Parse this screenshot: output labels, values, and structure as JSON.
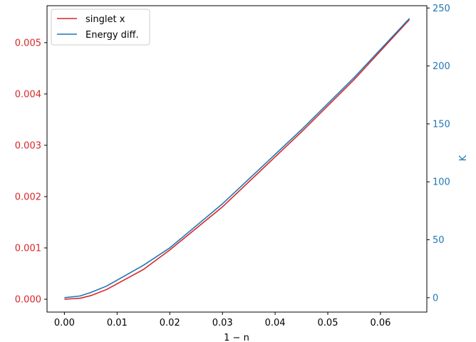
{
  "chart_data": {
    "type": "line",
    "xlabel": "1 − n",
    "ylabel_left": "",
    "ylabel_right": "K",
    "xlim": [
      -0.0033,
      0.0688
    ],
    "ylim_left": [
      -0.00025,
      0.00572
    ],
    "ylim_right": [
      -12.4,
      252
    ],
    "xticks": [
      "0.00",
      "0.01",
      "0.02",
      "0.03",
      "0.04",
      "0.05",
      "0.06"
    ],
    "yticks_left": [
      "0.000",
      "0.001",
      "0.002",
      "0.003",
      "0.004",
      "0.005"
    ],
    "yticks_right": [
      "0",
      "50",
      "100",
      "150",
      "200",
      "250"
    ],
    "legend_placement": "upper-left",
    "grid": false,
    "series": [
      {
        "name": "singlet x",
        "color": "#d62728",
        "axis": "left",
        "x": [
          0.0,
          0.003,
          0.005,
          0.008,
          0.015,
          0.02,
          0.03,
          0.045,
          0.055,
          0.0655
        ],
        "y": [
          0.0,
          2e-05,
          7e-05,
          0.00019,
          0.00058,
          0.00096,
          0.0018,
          0.00326,
          0.00428,
          0.00545
        ]
      },
      {
        "name": "Energy diff.",
        "color": "#1f77b4",
        "axis": "right",
        "x": [
          0.0,
          0.003,
          0.005,
          0.008,
          0.015,
          0.02,
          0.03,
          0.045,
          0.055,
          0.0655
        ],
        "y": [
          0.0,
          1.5,
          4.5,
          10.0,
          28.0,
          43.0,
          81.0,
          145.0,
          190.0,
          241.0
        ]
      }
    ]
  }
}
